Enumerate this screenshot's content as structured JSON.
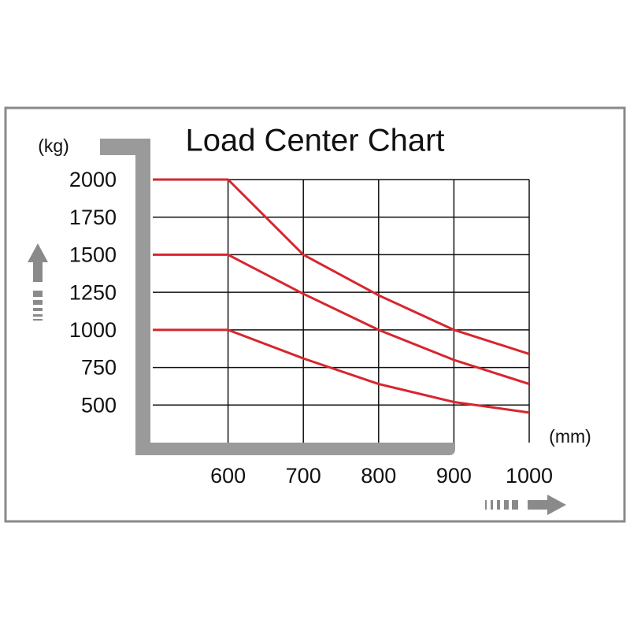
{
  "chart_data": {
    "type": "line",
    "title": "Load Center Chart",
    "y_label": "(kg)",
    "x_label": "(mm)",
    "x": [
      500,
      600,
      700,
      800,
      900,
      1000
    ],
    "series": [
      {
        "color": "#d7262e",
        "values": [
          2000,
          2000,
          1500,
          1230,
          1000,
          840
        ]
      },
      {
        "color": "#d7262e",
        "values": [
          1500,
          1500,
          1240,
          1000,
          800,
          640
        ]
      },
      {
        "color": "#d7262e",
        "values": [
          1000,
          1000,
          810,
          640,
          520,
          450
        ]
      }
    ],
    "xlim": [
      500,
      1000
    ],
    "xticks": [
      600,
      700,
      800,
      900,
      1000
    ],
    "ylim": [
      250,
      2000
    ],
    "yticks": [
      500,
      750,
      1000,
      1250,
      1500,
      1750,
      2000
    ],
    "grid": true
  }
}
